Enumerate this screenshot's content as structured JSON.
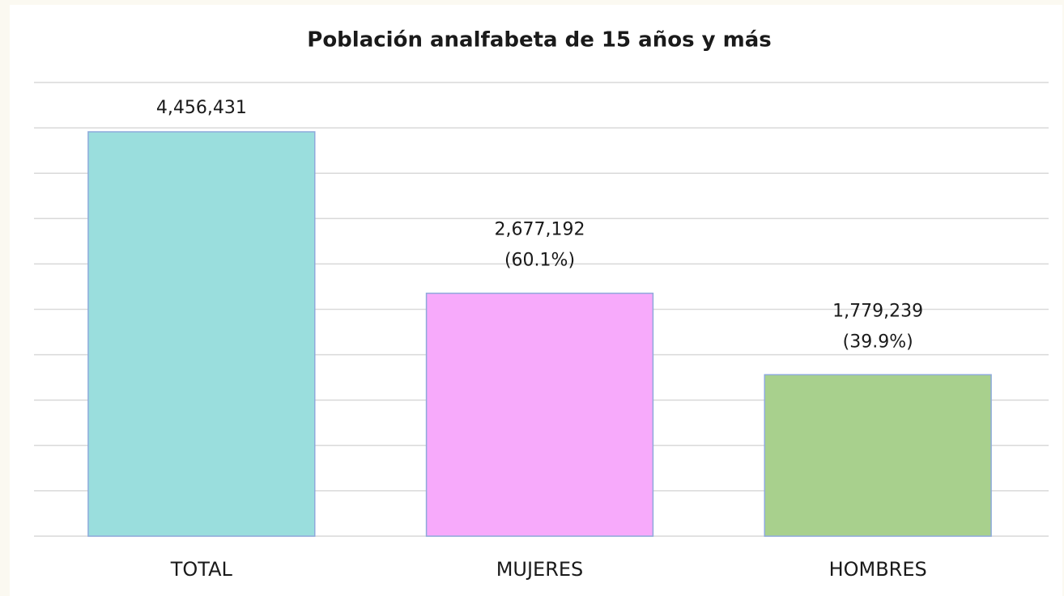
{
  "chart_data": {
    "type": "bar",
    "title": "Población analfabeta de 15 años y más",
    "categories": [
      "TOTAL",
      "MUJERES",
      "HOMBRES"
    ],
    "values": [
      4456431,
      2677192,
      1779239
    ],
    "value_labels": [
      "4,456,431",
      "2,677,192",
      "1,779,239"
    ],
    "percent_labels": [
      null,
      "(60.1%)",
      "(39.9%)"
    ],
    "colors": [
      "#9adedd",
      "#f7aafb",
      "#a8d08d"
    ],
    "ylim": [
      0,
      5000000
    ],
    "yticks": [
      0,
      500000,
      1000000,
      1500000,
      2000000,
      2500000,
      3000000,
      3500000,
      4000000,
      4500000,
      5000000
    ],
    "grid": true
  }
}
